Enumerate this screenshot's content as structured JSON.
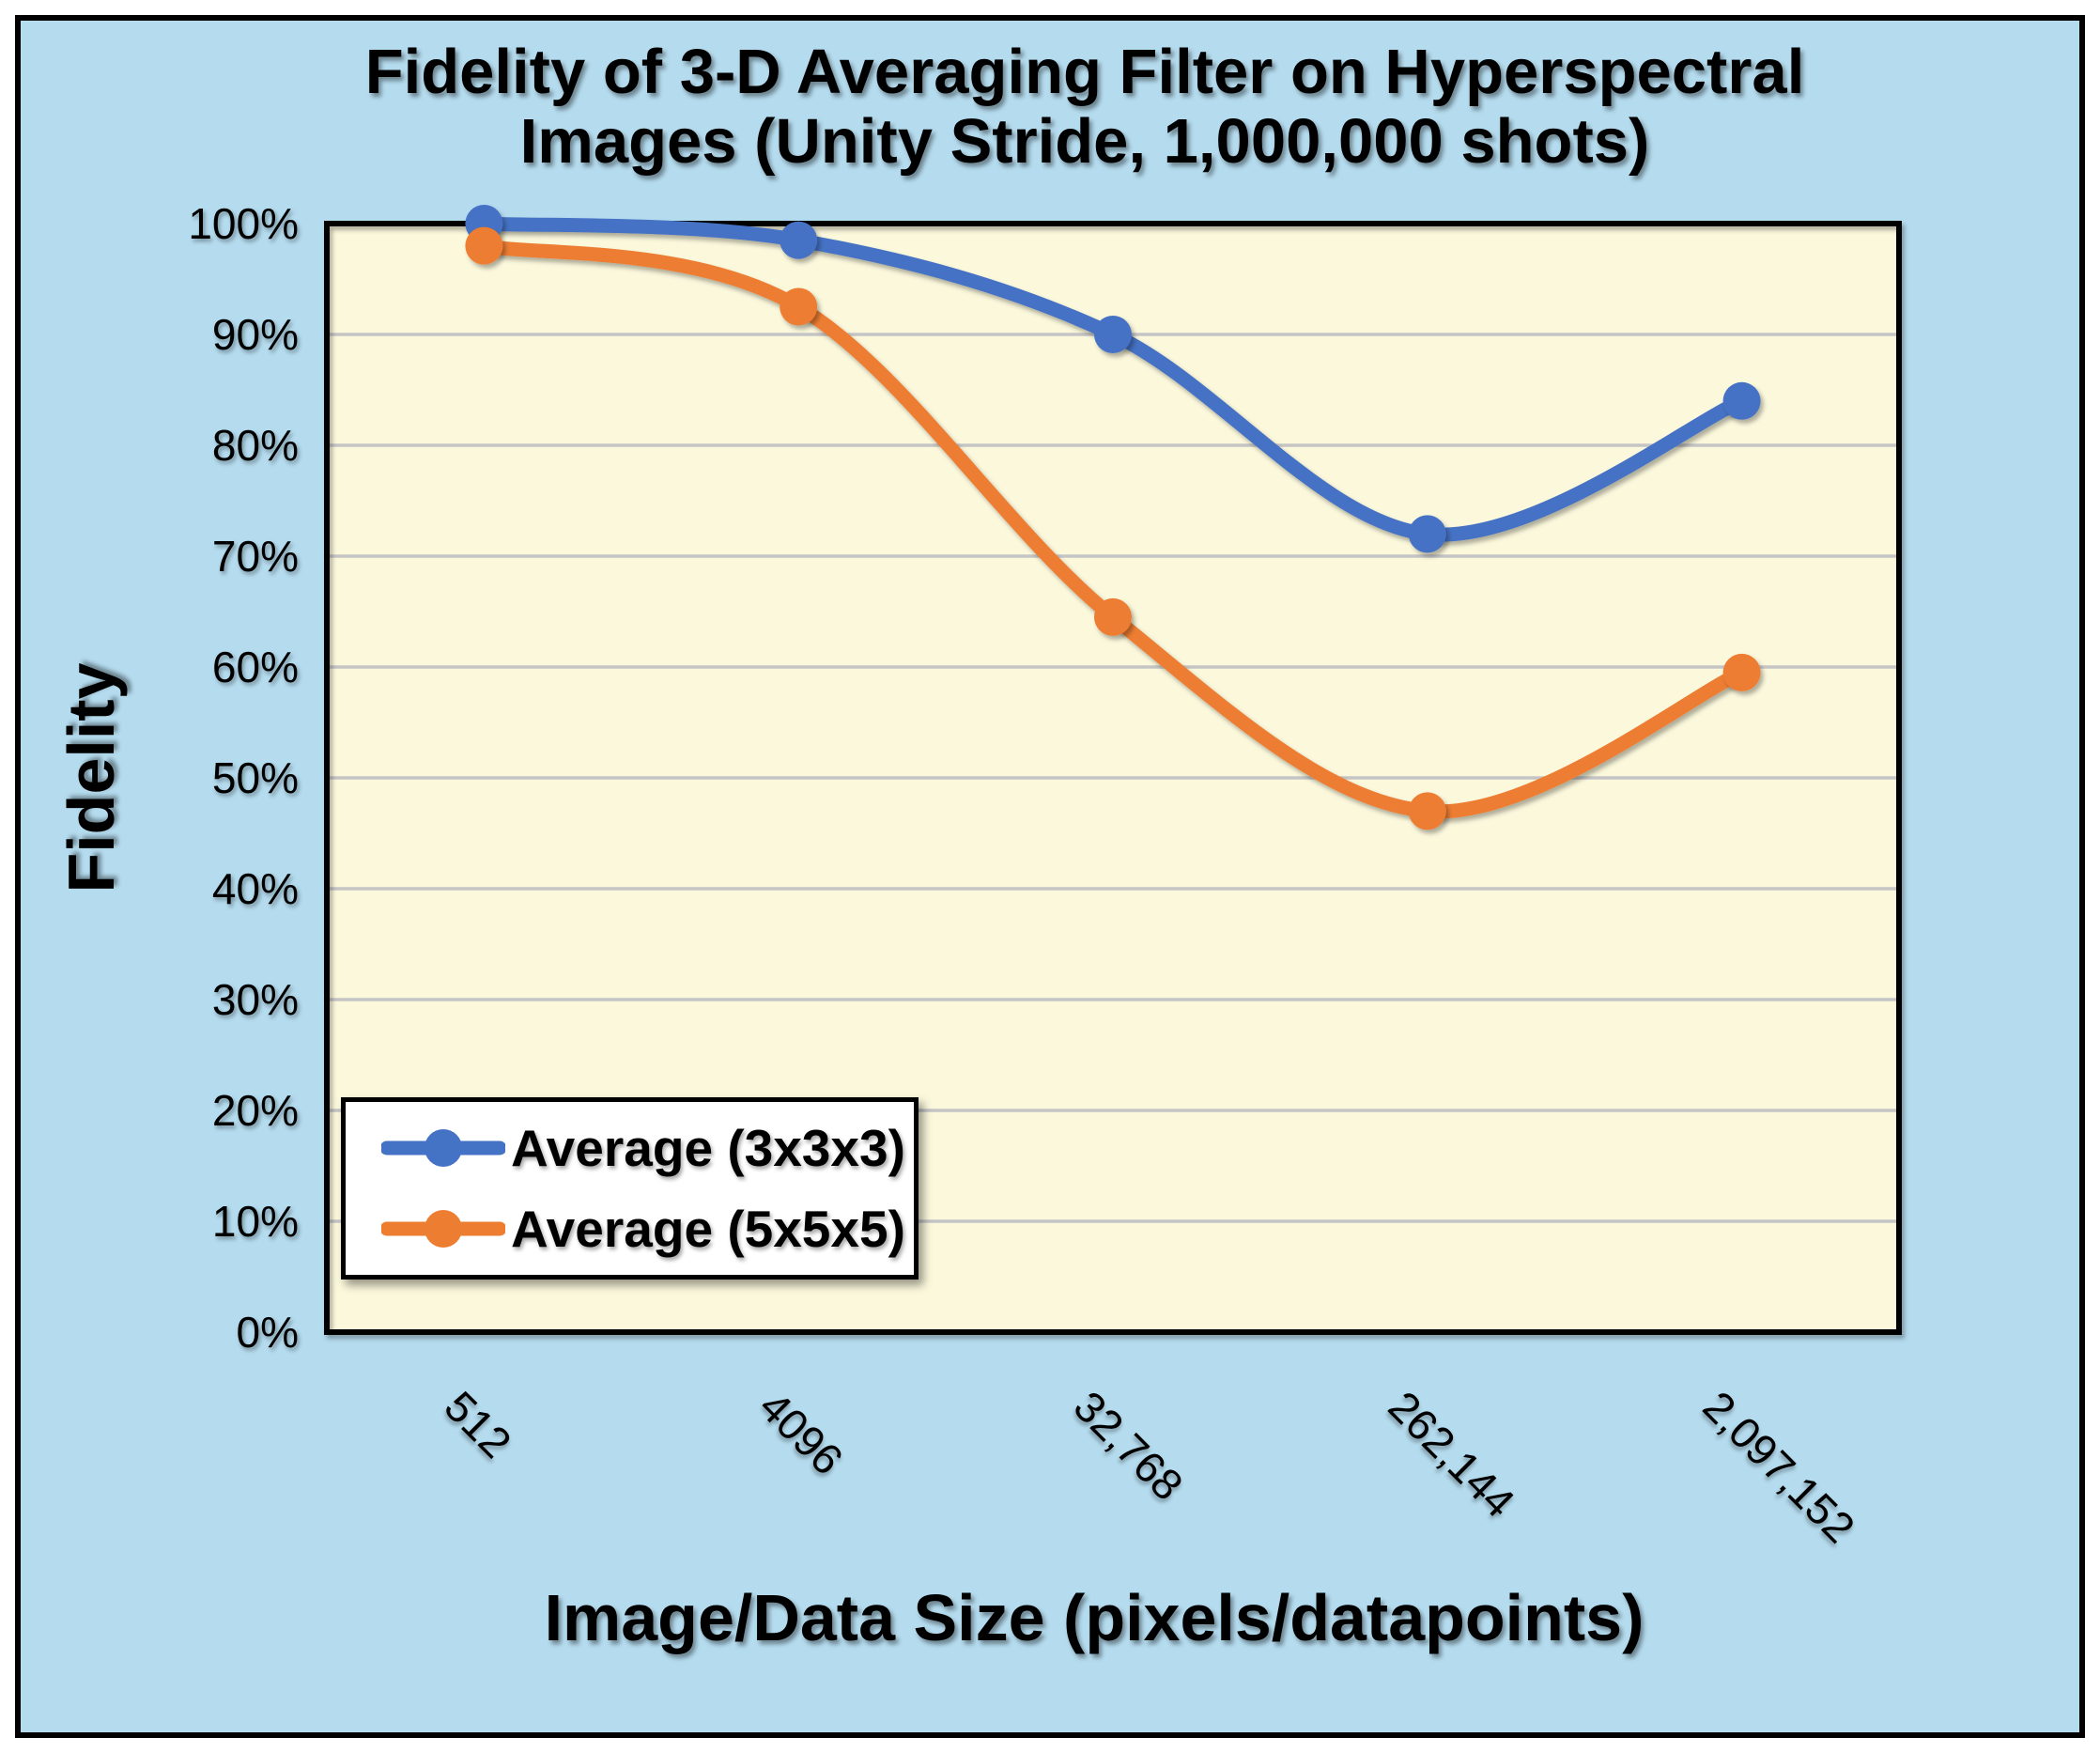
{
  "frame": {
    "background_color": "#B4DBEE",
    "border_color": "#000000"
  },
  "chart_data": {
    "type": "line",
    "title": "Fidelity of 3-D Averaging Filter on Hyperspectral Images (Unity Stride, 1,000,000 shots)",
    "xlabel": "Image/Data Size (pixels/datapoints)",
    "ylabel": "Fidelity",
    "categories": [
      "512",
      "4096",
      "32,768",
      "262,144",
      "2,097,152"
    ],
    "series": [
      {
        "name": "Average (3x3x3)",
        "color": "#4472C4",
        "values": [
          100,
          98.5,
          90,
          72,
          84
        ]
      },
      {
        "name": "Average (5x5x5)",
        "color": "#ED7D31",
        "values": [
          98,
          92.5,
          64.5,
          47,
          59.5
        ]
      }
    ],
    "ylim": [
      0,
      100
    ],
    "y_major_step": 10,
    "y_minor_step": 2,
    "y_tick_labels": [
      "0%",
      "10%",
      "20%",
      "30%",
      "40%",
      "50%",
      "60%",
      "70%",
      "80%",
      "90%",
      "100%"
    ],
    "grid": "horizontal-major",
    "gridline_color": "#C5C5C5",
    "plot_background": "#FBF8DC",
    "line_style": "smooth",
    "marker": "circle",
    "legend_position": "inside-bottom-left"
  }
}
